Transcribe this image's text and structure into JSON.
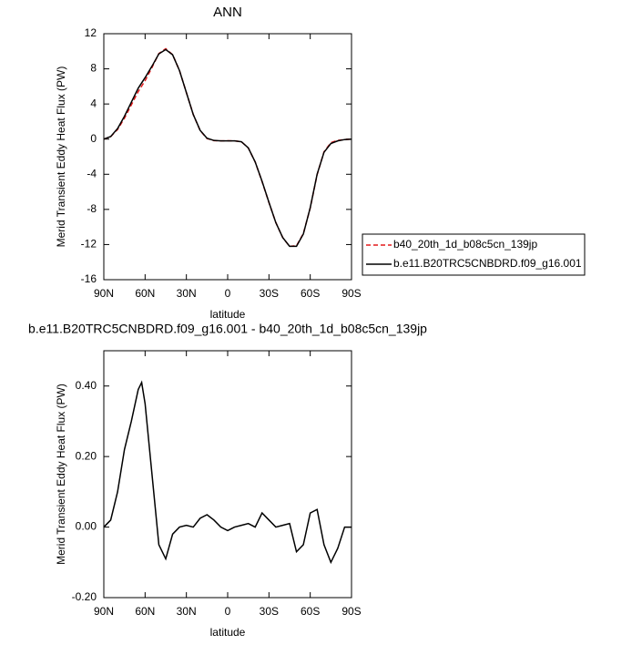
{
  "chart_data": [
    {
      "type": "line",
      "title": "ANN",
      "xlabel": "latitude",
      "ylabel": "Merid Transient Eddy Heat Flux (PW)",
      "x": [
        90,
        85,
        80,
        75,
        70,
        65,
        60,
        55,
        50,
        45,
        40,
        35,
        30,
        25,
        20,
        15,
        10,
        5,
        0,
        -5,
        -10,
        -15,
        -20,
        -25,
        -30,
        -35,
        -40,
        -45,
        -50,
        -55,
        -60,
        -65,
        -70,
        -75,
        -80,
        -85,
        -90
      ],
      "series": [
        {
          "name": "b40_20th_1d_b08c5cn_139jp",
          "color": "#e41a1c",
          "dash": "dashed",
          "values": [
            0,
            0.28,
            1.1,
            2.38,
            3.9,
            5.41,
            6.65,
            8.15,
            9.75,
            10.29,
            9.62,
            7.8,
            5.3,
            2.8,
            0.98,
            0.07,
            -0.17,
            -0.2,
            -0.19,
            -0.2,
            -0.3,
            -1.01,
            -2.6,
            -4.84,
            -7.22,
            -9.5,
            -11.2,
            -12.21,
            -12.13,
            -10.75,
            -7.84,
            -4.05,
            -1.45,
            -0.4,
            -0.14,
            -0.05,
            0
          ]
        },
        {
          "name": "b.e11.B20TRC5CNBDRD.f09_g16.001",
          "color": "#000000",
          "dash": "solid",
          "values": [
            0,
            0.3,
            1.2,
            2.6,
            4.2,
            5.8,
            7.0,
            8.3,
            9.7,
            10.2,
            9.6,
            7.8,
            5.3,
            2.8,
            1.0,
            0.1,
            -0.15,
            -0.2,
            -0.2,
            -0.2,
            -0.3,
            -1.0,
            -2.6,
            -4.8,
            -7.2,
            -9.5,
            -11.2,
            -12.2,
            -12.2,
            -10.8,
            -7.8,
            -4.0,
            -1.5,
            -0.5,
            -0.2,
            -0.05,
            0
          ]
        }
      ],
      "xlim": [
        90,
        -90
      ],
      "xticks": [
        {
          "value": 90,
          "label": "90N"
        },
        {
          "value": 60,
          "label": "60N"
        },
        {
          "value": 30,
          "label": "30N"
        },
        0,
        {
          "value": -30,
          "label": "30S"
        },
        {
          "value": -60,
          "label": "60S"
        },
        {
          "value": -90,
          "label": "90S"
        }
      ],
      "ylim": [
        -16,
        12
      ],
      "yticks": [
        12,
        8,
        4,
        0,
        -4,
        -8,
        -12,
        -16
      ],
      "legend": "right"
    },
    {
      "type": "line",
      "title": "b.e11.B20TRC5CNBDRD.f09_g16.001 - b40_20th_1d_b08c5cn_139jp",
      "xlabel": "latitude",
      "ylabel": "Merid Transient Eddy Heat Flux (PW)",
      "x": [
        90,
        85,
        80,
        75,
        70,
        65,
        62.5,
        60,
        55,
        50,
        45,
        40,
        35,
        30,
        25,
        20,
        15,
        10,
        5,
        0,
        -5,
        -10,
        -15,
        -20,
        -25,
        -30,
        -35,
        -40,
        -45,
        -50,
        -55,
        -60,
        -65,
        -70,
        -75,
        -80,
        -85,
        -90
      ],
      "values": [
        0,
        0.02,
        0.1,
        0.22,
        0.3,
        0.39,
        0.41,
        0.35,
        0.15,
        -0.05,
        -0.09,
        -0.02,
        0.0,
        0.005,
        0.0,
        0.025,
        0.035,
        0.02,
        0.0,
        -0.01,
        0.0,
        0.005,
        0.01,
        0.0,
        0.04,
        0.02,
        0.0,
        0.005,
        0.01,
        -0.07,
        -0.05,
        0.04,
        0.05,
        -0.05,
        -0.1,
        -0.06,
        0.0,
        0.0
      ],
      "color": "#000000",
      "xlim": [
        90,
        -90
      ],
      "xticks": [
        {
          "value": 90,
          "label": "90N"
        },
        {
          "value": 60,
          "label": "60N"
        },
        {
          "value": 30,
          "label": "30N"
        },
        0,
        {
          "value": -30,
          "label": "30S"
        },
        {
          "value": -60,
          "label": "60S"
        },
        {
          "value": -90,
          "label": "90S"
        }
      ],
      "ylim": [
        -0.2,
        0.5
      ],
      "yticks": [
        {
          "value": 0.4,
          "label": "0.40"
        },
        {
          "value": 0.2,
          "label": "0.20"
        },
        {
          "value": 0,
          "label": "0.00"
        },
        {
          "value": -0.2,
          "label": "-0.20"
        }
      ]
    }
  ]
}
